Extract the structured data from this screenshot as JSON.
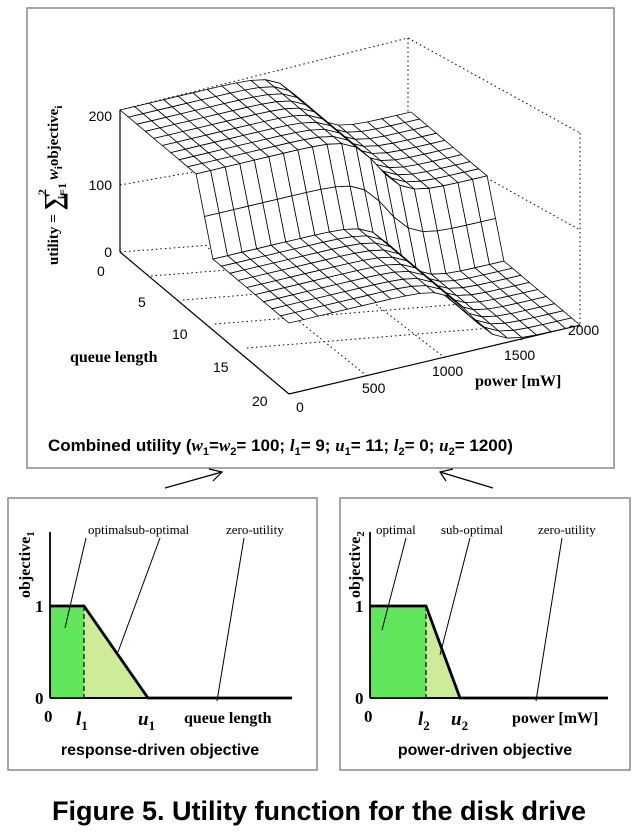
{
  "top_panel": {
    "z_label": {
      "prefix": "utility = ",
      "sum": "∑",
      "sup": "2",
      "sub": "i=1",
      "term": "w",
      "term_sub": "i",
      "suffix": "objective",
      "suffix_sub": "i"
    },
    "z_ticks": [
      "200",
      "100",
      "0"
    ],
    "queue_ticks": [
      "0",
      "5",
      "10",
      "15",
      "20"
    ],
    "power_ticks": [
      "0",
      "500",
      "1000",
      "1500",
      "2000"
    ],
    "queue_axis_label": "queue length",
    "power_axis_label": "power [mW]",
    "caption": {
      "t1": "Combined utility (",
      "t2": "w",
      "t3": "1",
      "t4": "=",
      "t5": "w",
      "t6": "2",
      "t7": "= 100; ",
      "t8": "l",
      "t9": "1",
      "t10": "= 9; ",
      "t11": "u",
      "t12": "1",
      "t13": "= 11; ",
      "t14": "l",
      "t15": "2",
      "t16": "= 0; ",
      "t17": "u",
      "t18": "2",
      "t19": "= 1200)"
    }
  },
  "left_panel": {
    "y_label": "objective",
    "y_label_sub": "1",
    "region_labels": [
      "optimal",
      "sub-optimal",
      "zero-utility"
    ],
    "y_ticks": [
      "1",
      "0"
    ],
    "x_ticks": {
      "zero": "0",
      "l": "l",
      "l_sub": "1",
      "u": "u",
      "u_sub": "1"
    },
    "x_label": "queue length",
    "caption": "response-driven objective"
  },
  "right_panel": {
    "y_label": "objective",
    "y_label_sub": "2",
    "region_labels": [
      "optimal",
      "sub-optimal",
      "zero-utility"
    ],
    "y_ticks": [
      "1",
      "0"
    ],
    "x_ticks": {
      "zero": "0",
      "l": "l",
      "l_sub": "2",
      "u": "u",
      "u_sub": "2"
    },
    "x_label": "power [mW]",
    "caption": "power-driven objective"
  },
  "figure_caption": "Figure 5. Utility function for the disk drive",
  "colors": {
    "optimal": "#5fe65a",
    "sub_optimal": "#cdec9a",
    "line": "#000000"
  }
}
